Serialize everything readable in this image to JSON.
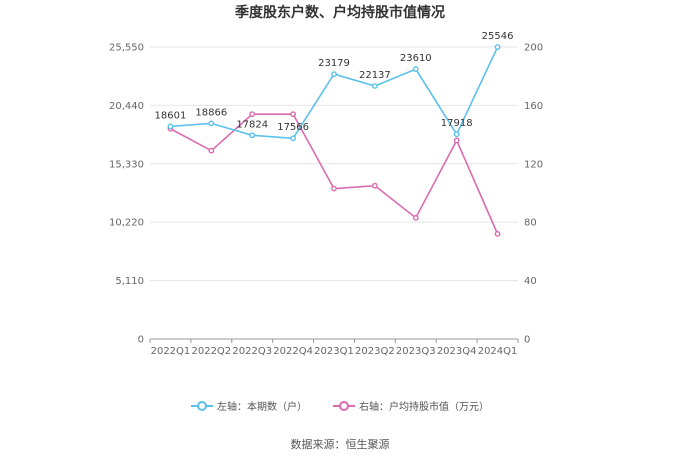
{
  "title": "季度股东户数、户均持股市值情况",
  "source": "数据来源：恒生聚源",
  "legend": {
    "left": "左轴：本期数（户）",
    "right": "右轴：户均持股市值（万元）"
  },
  "colors": {
    "left": "#5bc0eb",
    "right": "#d96bb0",
    "grid": "#e6e6e6"
  },
  "chart_data": {
    "type": "line",
    "categories": [
      "2022Q1",
      "2022Q2",
      "2022Q3",
      "2022Q4",
      "2023Q1",
      "2023Q2",
      "2023Q3",
      "2023Q4",
      "2024Q1"
    ],
    "series": [
      {
        "name": "左轴：本期数（户）",
        "axis": "left",
        "values": [
          18601,
          18866,
          17824,
          17566,
          23179,
          22137,
          23610,
          17918,
          25546
        ]
      },
      {
        "name": "右轴：户均持股市值（万元）",
        "axis": "right",
        "values": [
          144,
          129,
          154,
          154,
          103,
          105,
          83,
          136,
          72
        ]
      }
    ],
    "left_axis": {
      "ticks": [
        "0",
        "5,110",
        "10,220",
        "15,330",
        "20,440",
        "25,550"
      ],
      "max": 25550
    },
    "right_axis": {
      "ticks": [
        "0",
        "40",
        "80",
        "120",
        "160",
        "200"
      ],
      "max": 200
    },
    "data_labels": [
      "18601",
      "18866",
      "17824",
      "17566",
      "23179",
      "22137",
      "23610",
      "17918",
      "25546"
    ]
  }
}
